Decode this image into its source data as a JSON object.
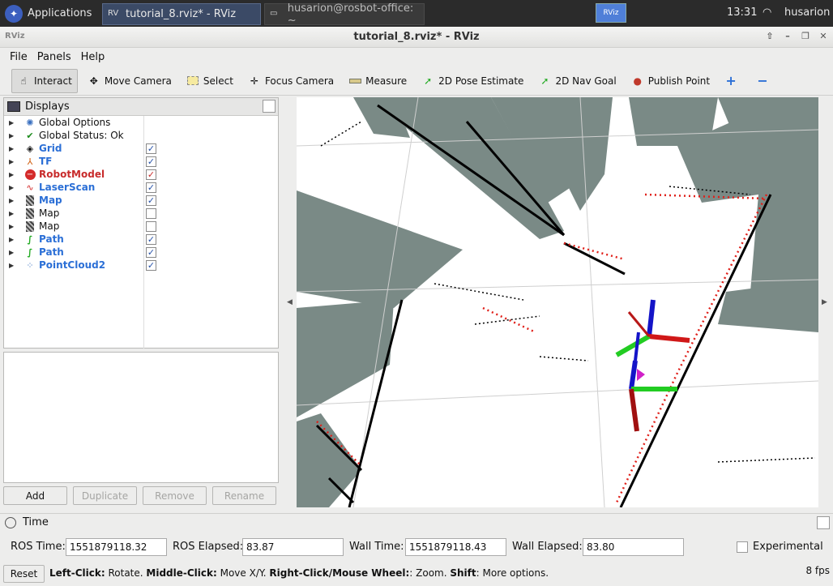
{
  "system_bar": {
    "applications_label": "Applications",
    "task_active": "tutorial_8.rviz* - RViz",
    "task_other": "husarion@rosbot-office: ~",
    "mini_label": "RViz",
    "clock": "13:31",
    "user": "husarion"
  },
  "window": {
    "title": "tutorial_8.rviz* - RViz"
  },
  "menu": {
    "file": "File",
    "panels": "Panels",
    "help": "Help"
  },
  "toolbar": {
    "interact": "Interact",
    "move_camera": "Move Camera",
    "select": "Select",
    "focus_camera": "Focus Camera",
    "measure": "Measure",
    "pose_estimate": "2D Pose Estimate",
    "nav_goal": "2D Nav Goal",
    "publish_point": "Publish Point"
  },
  "displays": {
    "title": "Displays",
    "items": [
      {
        "label": "Global Options",
        "style": "plain",
        "checkbox": null
      },
      {
        "label": "Global Status: Ok",
        "style": "plain",
        "checkbox": null
      },
      {
        "label": "Grid",
        "style": "blue",
        "checkbox": true
      },
      {
        "label": "TF",
        "style": "blue",
        "checkbox": true
      },
      {
        "label": "RobotModel",
        "style": "red",
        "checkbox": true
      },
      {
        "label": "LaserScan",
        "style": "blue",
        "checkbox": true
      },
      {
        "label": "Map",
        "style": "blue",
        "checkbox": true
      },
      {
        "label": "Map",
        "style": "plain",
        "checkbox": false
      },
      {
        "label": "Map",
        "style": "plain",
        "checkbox": false
      },
      {
        "label": "Path",
        "style": "blue",
        "checkbox": true
      },
      {
        "label": "Path",
        "style": "blue",
        "checkbox": true
      },
      {
        "label": "PointCloud2",
        "style": "blue",
        "checkbox": true
      }
    ],
    "buttons": {
      "add": "Add",
      "duplicate": "Duplicate",
      "remove": "Remove",
      "rename": "Rename"
    }
  },
  "time": {
    "title": "Time",
    "ros_time_label": "ROS Time:",
    "ros_time": "1551879118.32",
    "ros_elapsed_label": "ROS Elapsed:",
    "ros_elapsed": "83.87",
    "wall_time_label": "Wall Time:",
    "wall_time": "1551879118.43",
    "wall_elapsed_label": "Wall Elapsed:",
    "wall_elapsed": "83.80",
    "experimental_label": "Experimental"
  },
  "status": {
    "reset": "Reset",
    "left_click": "Left-Click:",
    "left_click_text": " Rotate. ",
    "middle_click": "Middle-Click:",
    "middle_click_text": " Move X/Y. ",
    "right_click": "Right-Click/Mouse Wheel:",
    "right_click_text": ": Zoom. ",
    "shift": "Shift",
    "shift_text": ": More options.",
    "fps": "8 fps"
  },
  "colors": {
    "map_gray": "#7a8a86",
    "laser_red": "#e0201a",
    "link_blue": "#2b6fd6",
    "axis_green": "#22cc22"
  }
}
